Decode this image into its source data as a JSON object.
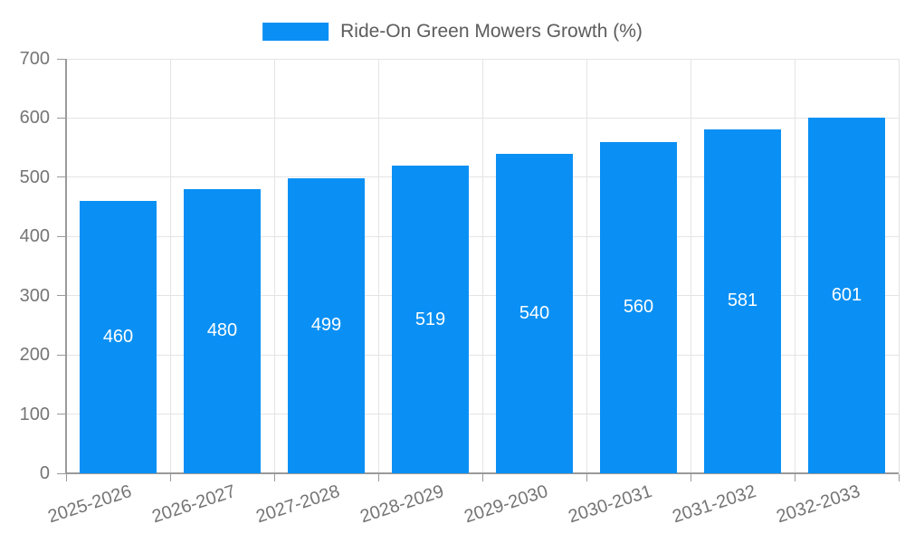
{
  "chart_data": {
    "type": "bar",
    "title": "",
    "legend_position": "top-center",
    "categories": [
      "2025-2026",
      "2026-2027",
      "2027-2028",
      "2028-2029",
      "2029-2030",
      "2030-2031",
      "2031-2032",
      "2032-2033"
    ],
    "series": [
      {
        "name": "Ride-On Green Mowers Growth (%)",
        "values": [
          460,
          480,
          499,
          519,
          540,
          560,
          581,
          601
        ]
      }
    ],
    "value_labels_shown": true,
    "ylim": [
      0,
      700
    ],
    "yticks": [
      0,
      100,
      200,
      300,
      400,
      500,
      600,
      700
    ],
    "xlabel": "",
    "ylabel": "",
    "grid": "horizontal-and-vertical",
    "colors": {
      "bar": "#0a90f4",
      "grid": "#e4e4e4",
      "axis": "#9a9a9a",
      "tick_text": "#757575",
      "legend_text": "#5c5c5c",
      "value_text": "#ffffff",
      "background": "#ffffff"
    }
  }
}
